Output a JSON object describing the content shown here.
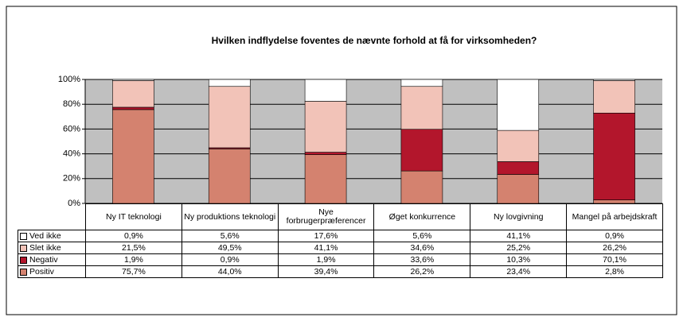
{
  "chart_data": {
    "type": "stacked_bar",
    "title": "Hvilken indflydelse foventes de nævnte forhold at få for virksomheden?",
    "categories": [
      "Ny IT teknologi",
      "Ny produktions teknologi",
      "Nye forbrugerpræferencer",
      "Øget konkurrence",
      "Ny lovgivning",
      "Mangel på arbejdskraft"
    ],
    "series": [
      {
        "name": "Positiv",
        "color": "#d4826f",
        "values": [
          75.7,
          44.0,
          39.4,
          26.2,
          23.4,
          2.8
        ],
        "value_labels": [
          "75,7%",
          "44,0%",
          "39,4%",
          "26,2%",
          "23,4%",
          "2,8%"
        ]
      },
      {
        "name": "Negativ",
        "color": "#b3162c",
        "values": [
          1.9,
          0.9,
          1.9,
          33.6,
          10.3,
          70.1
        ],
        "value_labels": [
          "1,9%",
          "0,9%",
          "1,9%",
          "33,6%",
          "10,3%",
          "70,1%"
        ]
      },
      {
        "name": "Slet ikke",
        "color": "#f2c3b8",
        "values": [
          21.5,
          49.5,
          41.1,
          34.6,
          25.2,
          26.2
        ],
        "value_labels": [
          "21,5%",
          "49,5%",
          "41,1%",
          "34,6%",
          "25,2%",
          "26,2%"
        ]
      },
      {
        "name": "Ved ikke",
        "color": "#ffffff",
        "values": [
          0.9,
          5.6,
          17.6,
          5.6,
          41.1,
          0.9
        ],
        "value_labels": [
          "0,9%",
          "5,6%",
          "17,6%",
          "5,6%",
          "41,1%",
          "0,9%"
        ]
      }
    ],
    "ylim": [
      0,
      100
    ],
    "yticks": [
      {
        "value": 0,
        "label": "0%"
      },
      {
        "value": 20,
        "label": "20%"
      },
      {
        "value": 40,
        "label": "40%"
      },
      {
        "value": 60,
        "label": "60%"
      },
      {
        "value": 80,
        "label": "80%"
      },
      {
        "value": 100,
        "label": "100%"
      }
    ],
    "grid": true
  }
}
